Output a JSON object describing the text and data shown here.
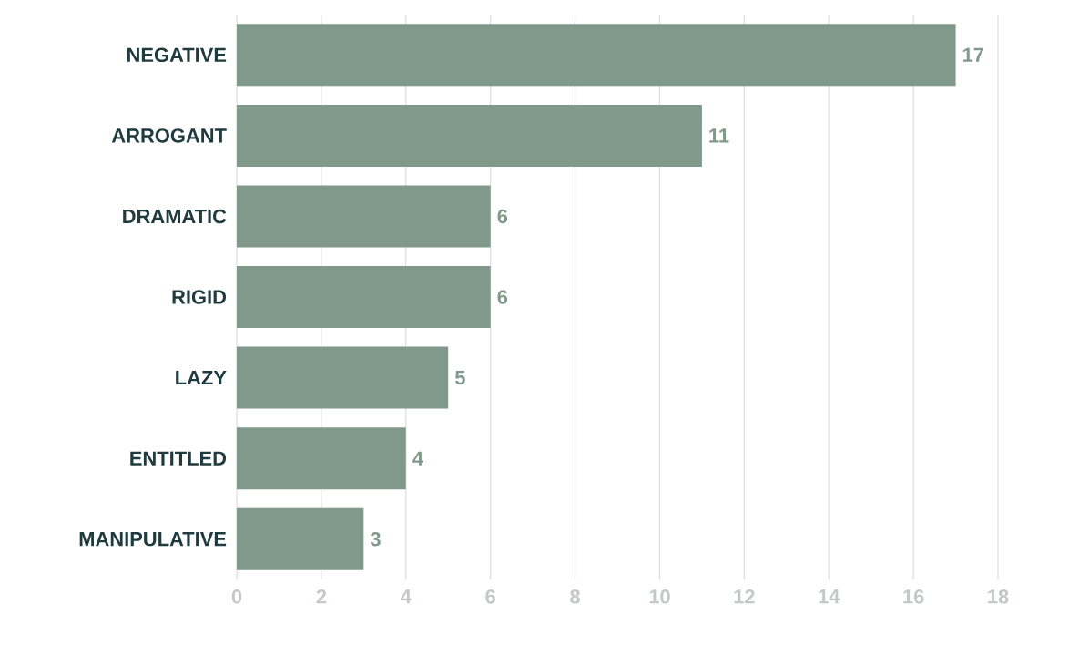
{
  "chart_data": {
    "type": "bar",
    "orientation": "horizontal",
    "categories": [
      "NEGATIVE",
      "ARROGANT",
      "DRAMATIC",
      "RIGID",
      "LAZY",
      "ENTITLED",
      "MANIPULATIVE"
    ],
    "values": [
      17,
      11,
      6,
      6,
      5,
      4,
      3
    ],
    "color": "#80998a",
    "xlim": [
      0,
      18
    ],
    "xticks": [
      0,
      2,
      4,
      6,
      8,
      10,
      12,
      14,
      16,
      18
    ],
    "grid": "x",
    "data_labels": true
  }
}
